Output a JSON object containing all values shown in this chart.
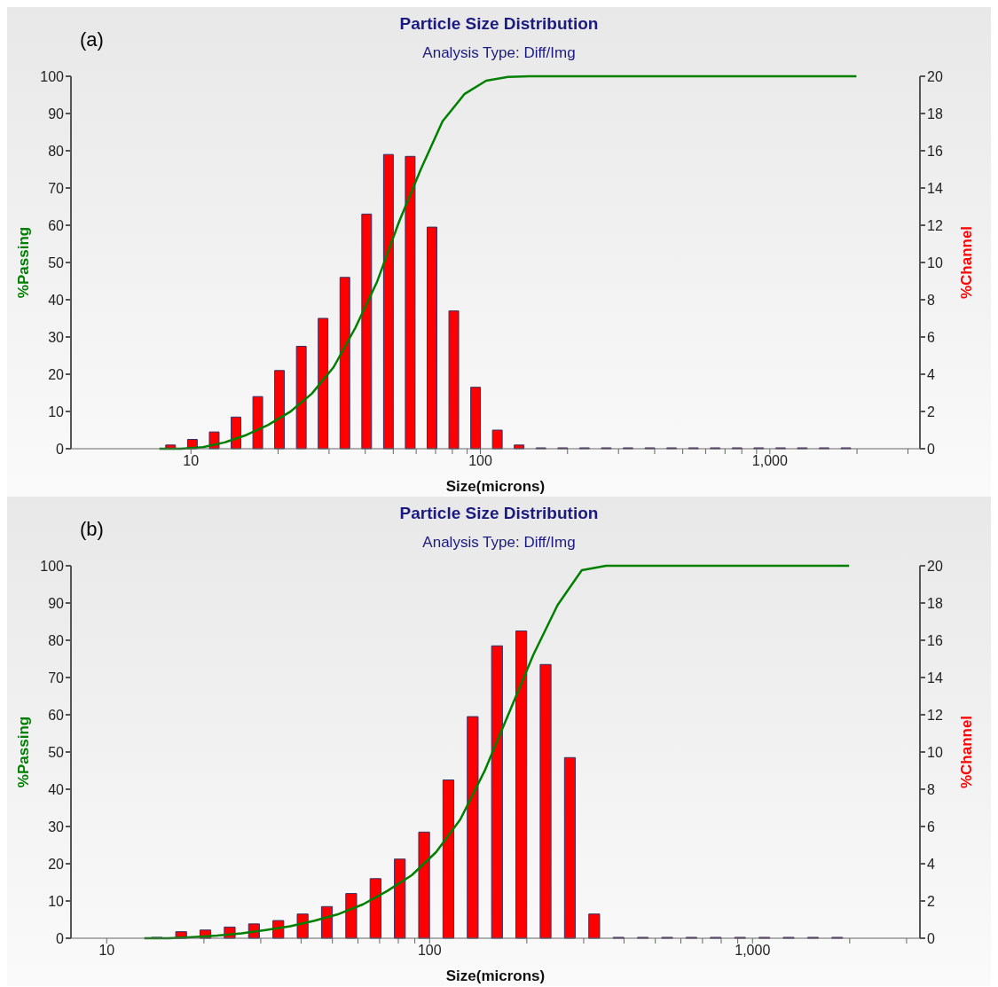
{
  "chart_data": [
    {
      "type": "bar",
      "title": "Particle Size Distribution",
      "subtitle": "Analysis Type: Diff/Img",
      "xlabel": "Size(microns)",
      "ylabel": "%Passing",
      "y2label": "%Channel",
      "annotations": [
        "(a)"
      ],
      "log": "x",
      "xlim": [
        3.85,
        3300
      ],
      "xticks": [
        {
          "value": 10,
          "label": "10"
        },
        {
          "value": 20,
          "label": null
        },
        {
          "value": 30,
          "label": null
        },
        {
          "value": 40,
          "label": null
        },
        {
          "value": 50,
          "label": null
        },
        {
          "value": 60,
          "label": null
        },
        {
          "value": 70,
          "label": null
        },
        {
          "value": 80,
          "label": null
        },
        {
          "value": 90,
          "label": null
        },
        {
          "value": 100,
          "label": "100"
        },
        {
          "value": 200,
          "label": null
        },
        {
          "value": 300,
          "label": null
        },
        {
          "value": 400,
          "label": null
        },
        {
          "value": 500,
          "label": null
        },
        {
          "value": 600,
          "label": null
        },
        {
          "value": 700,
          "label": null
        },
        {
          "value": 800,
          "label": null
        },
        {
          "value": 900,
          "label": null
        },
        {
          "value": 1000,
          "label": "1,000"
        },
        {
          "value": 2000,
          "label": null
        },
        {
          "value": 3000,
          "label": null
        }
      ],
      "ylim": [
        0,
        100
      ],
      "yticks": [
        0,
        10,
        20,
        30,
        40,
        50,
        60,
        70,
        80,
        90,
        100
      ],
      "y2lim": [
        0,
        20
      ],
      "y2ticks": [
        0,
        2,
        4,
        6,
        8,
        10,
        12,
        14,
        16,
        18,
        20
      ],
      "series": [
        {
          "axis": "y2",
          "color": "#ff0000",
          "x": [
            8.48,
            10.09,
            12,
            14.27,
            16.97,
            20.17,
            23.99,
            28.53,
            33.93,
            40.35,
            47.98,
            57.06,
            67.86,
            80.7,
            95.97,
            114.1,
            135.7,
            161.4,
            191.9,
            228.2,
            271.4,
            322.8,
            383.9,
            456.5,
            542.9,
            645.6,
            767.7,
            912.9,
            1086,
            1291,
            1536,
            1826
          ],
          "values": [
            0.2,
            0.5,
            0.9,
            1.7,
            2.8,
            4.2,
            5.5,
            7,
            9.2,
            12.6,
            15.8,
            15.7,
            11.9,
            7.4,
            3.3,
            1,
            0.2,
            0,
            0,
            0,
            0,
            0,
            0,
            0,
            0,
            0,
            0,
            0,
            0,
            0,
            0,
            0
          ]
        },
        {
          "type": "line",
          "axis": "y",
          "color": "#008000",
          "x": [
            7.78,
            9.25,
            11,
            13.08,
            15.56,
            18.5,
            22,
            26.16,
            31.11,
            37,
            44,
            52.33,
            62.23,
            74,
            88,
            104.7,
            124.5,
            148,
            176,
            209.3,
            248.9,
            296,
            352,
            418.6,
            497.8,
            592,
            704,
            837.2,
            995.6,
            1184,
            1408,
            1674,
            1991
          ],
          "values": [
            0,
            0,
            0.4,
            1.7,
            3.7,
            6.4,
            9.9,
            14.8,
            21.9,
            32.5,
            44.9,
            60.9,
            75,
            87.9,
            95.2,
            98.8,
            99.8,
            100,
            100,
            100,
            100,
            100,
            100,
            100,
            100,
            100,
            100,
            100,
            100,
            100,
            100,
            100,
            100
          ]
        }
      ]
    },
    {
      "type": "bar",
      "title": "Particle Size Distribution",
      "subtitle": "Analysis Type: Diff/Img",
      "xlabel": "Size(microns)",
      "ylabel": "%Passing",
      "y2label": "%Channel",
      "annotations": [
        "(b)"
      ],
      "log": "x",
      "xlim": [
        7.75,
        3300
      ],
      "xticks": [
        {
          "value": 10,
          "label": "10"
        },
        {
          "value": 20,
          "label": null
        },
        {
          "value": 30,
          "label": null
        },
        {
          "value": 40,
          "label": null
        },
        {
          "value": 50,
          "label": null
        },
        {
          "value": 60,
          "label": null
        },
        {
          "value": 70,
          "label": null
        },
        {
          "value": 80,
          "label": null
        },
        {
          "value": 90,
          "label": null
        },
        {
          "value": 100,
          "label": "100"
        },
        {
          "value": 200,
          "label": null
        },
        {
          "value": 300,
          "label": null
        },
        {
          "value": 400,
          "label": null
        },
        {
          "value": 500,
          "label": null
        },
        {
          "value": 600,
          "label": null
        },
        {
          "value": 700,
          "label": null
        },
        {
          "value": 800,
          "label": null
        },
        {
          "value": 900,
          "label": null
        },
        {
          "value": 1000,
          "label": "1,000"
        },
        {
          "value": 2000,
          "label": null
        },
        {
          "value": 3000,
          "label": null
        }
      ],
      "ylim": [
        0,
        100
      ],
      "yticks": [
        0,
        10,
        20,
        30,
        40,
        50,
        60,
        70,
        80,
        90,
        100
      ],
      "y2lim": [
        0,
        20
      ],
      "y2ticks": [
        0,
        2,
        4,
        6,
        8,
        10,
        12,
        14,
        16,
        18,
        20
      ],
      "series": [
        {
          "axis": "y2",
          "color": "#ff0000",
          "x": [
            14.27,
            16.97,
            20.17,
            23.99,
            28.53,
            33.93,
            40.35,
            47.98,
            57.06,
            67.86,
            80.7,
            95.97,
            114.1,
            135.7,
            161.4,
            191.9,
            228.2,
            271.4,
            322.8,
            383.9,
            456.5,
            542.9,
            645.6,
            767.7,
            912.9,
            1086,
            1291,
            1536,
            1826
          ],
          "values": [
            0,
            0.35,
            0.44,
            0.6,
            0.77,
            0.95,
            1.3,
            1.7,
            2.4,
            3.2,
            4.25,
            5.7,
            8.5,
            11.9,
            15.7,
            16.5,
            14.7,
            9.7,
            1.3,
            0,
            0,
            0,
            0,
            0,
            0,
            0,
            0,
            0,
            0
          ]
        },
        {
          "type": "line",
          "axis": "y",
          "color": "#008000",
          "x": [
            13.08,
            15.56,
            18.5,
            22,
            26.16,
            31.11,
            37,
            44,
            52.33,
            62.23,
            74,
            88,
            104.7,
            124.5,
            148,
            176,
            209.3,
            248.9,
            296,
            352,
            418.6,
            497.8,
            592,
            704,
            837.2,
            995.6,
            1184,
            1408,
            1674,
            1991
          ],
          "values": [
            0,
            0,
            0.3,
            0.7,
            1.3,
            2.2,
            3.2,
            4.7,
            6.5,
            9.1,
            12.7,
            16.9,
            23.1,
            31.9,
            44.9,
            60.4,
            76,
            89.4,
            98.8,
            100,
            100,
            100,
            100,
            100,
            100,
            100,
            100,
            100,
            100,
            100
          ]
        }
      ]
    }
  ]
}
